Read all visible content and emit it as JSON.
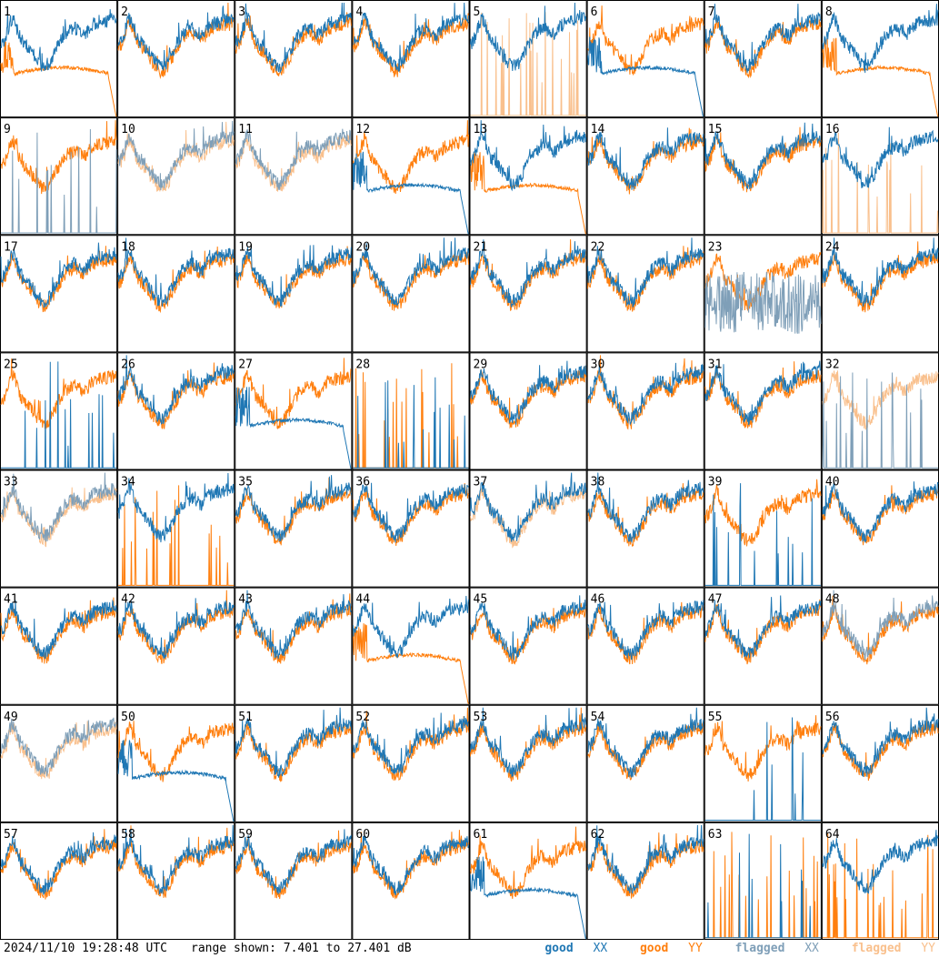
{
  "footer": {
    "timestamp": "2024/11/10 19:28:48 UTC",
    "range_prefix": "range shown:",
    "range_text": "7.401 to 27.401 dB",
    "legend": [
      {
        "key": "good_xx",
        "word": "good",
        "tag": "XX",
        "color": "#1f77b4"
      },
      {
        "key": "good_yy",
        "word": "good",
        "tag": "YY",
        "color": "#ff7f0e"
      },
      {
        "key": "flagged_xx",
        "word": "flagged",
        "tag": "XX",
        "color": "#7f9fb8"
      },
      {
        "key": "flagged_yy",
        "word": "flagged",
        "tag": "YY",
        "color": "#f9c08d"
      }
    ]
  },
  "chart_data": {
    "type": "line",
    "layout": "8x8 grid of small multiples",
    "y_unit": "dB",
    "ylim": [
      7.401,
      27.401
    ],
    "series_colors": {
      "good_xx": "#1f77b4",
      "good_yy": "#ff7f0e",
      "flagged_xx": "#7f9fb8",
      "flagged_yy": "#f9c08d"
    },
    "tiles": [
      {
        "label": "1",
        "xx": {
          "status": "good",
          "shape": "normal"
        },
        "yy": {
          "status": "good",
          "shape": "drop"
        }
      },
      {
        "label": "2",
        "xx": {
          "status": "good",
          "shape": "normal"
        },
        "yy": {
          "status": "good",
          "shape": "normal"
        }
      },
      {
        "label": "3",
        "xx": {
          "status": "good",
          "shape": "normal"
        },
        "yy": {
          "status": "good",
          "shape": "normal"
        }
      },
      {
        "label": "4",
        "xx": {
          "status": "good",
          "shape": "normal"
        },
        "yy": {
          "status": "good",
          "shape": "normal"
        }
      },
      {
        "label": "5",
        "xx": {
          "status": "good",
          "shape": "normal"
        },
        "yy": {
          "status": "flagged",
          "shape": "spikes"
        }
      },
      {
        "label": "6",
        "xx": {
          "status": "good",
          "shape": "drop"
        },
        "yy": {
          "status": "good",
          "shape": "normal"
        }
      },
      {
        "label": "7",
        "xx": {
          "status": "good",
          "shape": "normal"
        },
        "yy": {
          "status": "good",
          "shape": "normal"
        }
      },
      {
        "label": "8",
        "xx": {
          "status": "good",
          "shape": "normal"
        },
        "yy": {
          "status": "good",
          "shape": "drop"
        }
      },
      {
        "label": "9",
        "xx": {
          "status": "flagged",
          "shape": "spikes"
        },
        "yy": {
          "status": "good",
          "shape": "normal"
        }
      },
      {
        "label": "10",
        "xx": {
          "status": "flagged",
          "shape": "normal"
        },
        "yy": {
          "status": "flagged",
          "shape": "normal"
        }
      },
      {
        "label": "11",
        "xx": {
          "status": "flagged",
          "shape": "normal"
        },
        "yy": {
          "status": "flagged",
          "shape": "normal"
        }
      },
      {
        "label": "12",
        "xx": {
          "status": "good",
          "shape": "drop"
        },
        "yy": {
          "status": "good",
          "shape": "normal"
        }
      },
      {
        "label": "13",
        "xx": {
          "status": "good",
          "shape": "normal"
        },
        "yy": {
          "status": "good",
          "shape": "drop"
        }
      },
      {
        "label": "14",
        "xx": {
          "status": "good",
          "shape": "normal"
        },
        "yy": {
          "status": "good",
          "shape": "normal"
        }
      },
      {
        "label": "15",
        "xx": {
          "status": "good",
          "shape": "normal"
        },
        "yy": {
          "status": "good",
          "shape": "normal"
        }
      },
      {
        "label": "16",
        "xx": {
          "status": "good",
          "shape": "normal"
        },
        "yy": {
          "status": "flagged",
          "shape": "spikes"
        }
      },
      {
        "label": "17",
        "xx": {
          "status": "good",
          "shape": "normal"
        },
        "yy": {
          "status": "good",
          "shape": "normal"
        }
      },
      {
        "label": "18",
        "xx": {
          "status": "good",
          "shape": "normal"
        },
        "yy": {
          "status": "good",
          "shape": "normal"
        }
      },
      {
        "label": "19",
        "xx": {
          "status": "good",
          "shape": "normal"
        },
        "yy": {
          "status": "good",
          "shape": "normal"
        }
      },
      {
        "label": "20",
        "xx": {
          "status": "good",
          "shape": "normal"
        },
        "yy": {
          "status": "good",
          "shape": "normal"
        }
      },
      {
        "label": "21",
        "xx": {
          "status": "good",
          "shape": "normal"
        },
        "yy": {
          "status": "good",
          "shape": "normal"
        }
      },
      {
        "label": "22",
        "xx": {
          "status": "good",
          "shape": "normal"
        },
        "yy": {
          "status": "good",
          "shape": "normal"
        }
      },
      {
        "label": "23",
        "xx": {
          "status": "flagged",
          "shape": "noise"
        },
        "yy": {
          "status": "good",
          "shape": "normal"
        }
      },
      {
        "label": "24",
        "xx": {
          "status": "good",
          "shape": "normal"
        },
        "yy": {
          "status": "good",
          "shape": "normal"
        }
      },
      {
        "label": "25",
        "xx": {
          "status": "good",
          "shape": "spikes"
        },
        "yy": {
          "status": "good",
          "shape": "normal"
        }
      },
      {
        "label": "26",
        "xx": {
          "status": "good",
          "shape": "normal"
        },
        "yy": {
          "status": "good",
          "shape": "normal"
        }
      },
      {
        "label": "27",
        "xx": {
          "status": "good",
          "shape": "drop"
        },
        "yy": {
          "status": "good",
          "shape": "normal"
        }
      },
      {
        "label": "28",
        "xx": {
          "status": "good",
          "shape": "spikes"
        },
        "yy": {
          "status": "good",
          "shape": "spikes"
        }
      },
      {
        "label": "29",
        "xx": {
          "status": "good",
          "shape": "normal"
        },
        "yy": {
          "status": "good",
          "shape": "normal"
        }
      },
      {
        "label": "30",
        "xx": {
          "status": "good",
          "shape": "normal"
        },
        "yy": {
          "status": "good",
          "shape": "normal"
        }
      },
      {
        "label": "31",
        "xx": {
          "status": "good",
          "shape": "normal"
        },
        "yy": {
          "status": "good",
          "shape": "normal"
        }
      },
      {
        "label": "32",
        "xx": {
          "status": "flagged",
          "shape": "spikes"
        },
        "yy": {
          "status": "flagged",
          "shape": "normal"
        }
      },
      {
        "label": "33",
        "xx": {
          "status": "flagged",
          "shape": "normal"
        },
        "yy": {
          "status": "flagged",
          "shape": "normal"
        }
      },
      {
        "label": "34",
        "xx": {
          "status": "good",
          "shape": "normal"
        },
        "yy": {
          "status": "good",
          "shape": "spikes"
        }
      },
      {
        "label": "35",
        "xx": {
          "status": "good",
          "shape": "normal"
        },
        "yy": {
          "status": "good",
          "shape": "normal"
        }
      },
      {
        "label": "36",
        "xx": {
          "status": "good",
          "shape": "normal"
        },
        "yy": {
          "status": "good",
          "shape": "normal"
        }
      },
      {
        "label": "37",
        "xx": {
          "status": "good",
          "shape": "normal"
        },
        "yy": {
          "status": "flagged",
          "shape": "normal"
        }
      },
      {
        "label": "38",
        "xx": {
          "status": "good",
          "shape": "normal"
        },
        "yy": {
          "status": "good",
          "shape": "normal"
        }
      },
      {
        "label": "39",
        "xx": {
          "status": "good",
          "shape": "spikes"
        },
        "yy": {
          "status": "good",
          "shape": "normal"
        }
      },
      {
        "label": "40",
        "xx": {
          "status": "good",
          "shape": "normal"
        },
        "yy": {
          "status": "good",
          "shape": "normal"
        }
      },
      {
        "label": "41",
        "xx": {
          "status": "good",
          "shape": "normal"
        },
        "yy": {
          "status": "good",
          "shape": "normal"
        }
      },
      {
        "label": "42",
        "xx": {
          "status": "good",
          "shape": "normal"
        },
        "yy": {
          "status": "good",
          "shape": "normal"
        }
      },
      {
        "label": "43",
        "xx": {
          "status": "good",
          "shape": "normal"
        },
        "yy": {
          "status": "good",
          "shape": "normal"
        }
      },
      {
        "label": "44",
        "xx": {
          "status": "good",
          "shape": "normal"
        },
        "yy": {
          "status": "good",
          "shape": "drop"
        }
      },
      {
        "label": "45",
        "xx": {
          "status": "good",
          "shape": "normal"
        },
        "yy": {
          "status": "good",
          "shape": "normal"
        }
      },
      {
        "label": "46",
        "xx": {
          "status": "good",
          "shape": "normal"
        },
        "yy": {
          "status": "good",
          "shape": "normal"
        }
      },
      {
        "label": "47",
        "xx": {
          "status": "good",
          "shape": "normal"
        },
        "yy": {
          "status": "good",
          "shape": "normal"
        }
      },
      {
        "label": "48",
        "xx": {
          "status": "flagged",
          "shape": "normal"
        },
        "yy": {
          "status": "good",
          "shape": "normal"
        }
      },
      {
        "label": "49",
        "xx": {
          "status": "flagged",
          "shape": "normal"
        },
        "yy": {
          "status": "flagged",
          "shape": "normal"
        }
      },
      {
        "label": "50",
        "xx": {
          "status": "good",
          "shape": "drop"
        },
        "yy": {
          "status": "good",
          "shape": "normal"
        }
      },
      {
        "label": "51",
        "xx": {
          "status": "good",
          "shape": "normal"
        },
        "yy": {
          "status": "good",
          "shape": "normal"
        }
      },
      {
        "label": "52",
        "xx": {
          "status": "good",
          "shape": "normal"
        },
        "yy": {
          "status": "good",
          "shape": "normal"
        }
      },
      {
        "label": "53",
        "xx": {
          "status": "good",
          "shape": "normal"
        },
        "yy": {
          "status": "good",
          "shape": "normal"
        }
      },
      {
        "label": "54",
        "xx": {
          "status": "good",
          "shape": "normal"
        },
        "yy": {
          "status": "good",
          "shape": "normal"
        }
      },
      {
        "label": "55",
        "xx": {
          "status": "good",
          "shape": "spikes"
        },
        "yy": {
          "status": "good",
          "shape": "normal"
        }
      },
      {
        "label": "56",
        "xx": {
          "status": "good",
          "shape": "normal"
        },
        "yy": {
          "status": "good",
          "shape": "normal"
        }
      },
      {
        "label": "57",
        "xx": {
          "status": "good",
          "shape": "normal"
        },
        "yy": {
          "status": "good",
          "shape": "normal"
        }
      },
      {
        "label": "58",
        "xx": {
          "status": "good",
          "shape": "normal"
        },
        "yy": {
          "status": "good",
          "shape": "normal"
        }
      },
      {
        "label": "59",
        "xx": {
          "status": "good",
          "shape": "normal"
        },
        "yy": {
          "status": "good",
          "shape": "normal"
        }
      },
      {
        "label": "60",
        "xx": {
          "status": "good",
          "shape": "normal"
        },
        "yy": {
          "status": "good",
          "shape": "normal"
        }
      },
      {
        "label": "61",
        "xx": {
          "status": "good",
          "shape": "drop"
        },
        "yy": {
          "status": "good",
          "shape": "normal"
        }
      },
      {
        "label": "62",
        "xx": {
          "status": "good",
          "shape": "normal"
        },
        "yy": {
          "status": "good",
          "shape": "normal"
        }
      },
      {
        "label": "63",
        "xx": {
          "status": "good",
          "shape": "spikes"
        },
        "yy": {
          "status": "good",
          "shape": "spikes"
        }
      },
      {
        "label": "64",
        "xx": {
          "status": "good",
          "shape": "normal"
        },
        "yy": {
          "status": "good",
          "shape": "spikes"
        }
      }
    ]
  }
}
